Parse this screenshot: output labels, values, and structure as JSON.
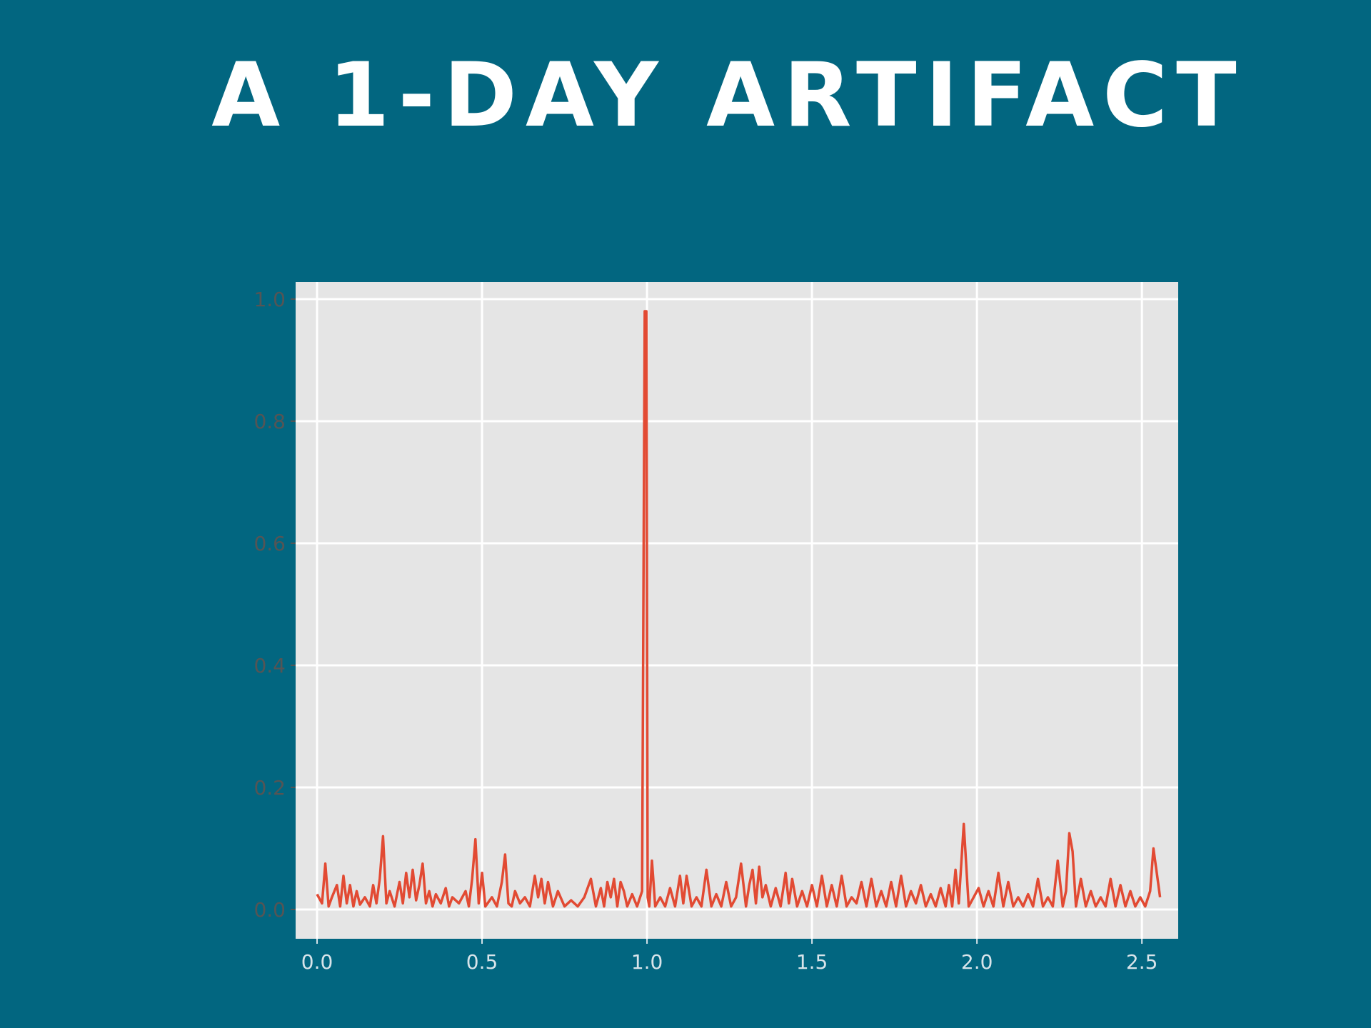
{
  "slide": {
    "title": "A 1-Day Artifact",
    "background_color": "#026680",
    "title_color": "#ffffff"
  },
  "chart_data": {
    "type": "line",
    "title": "",
    "xlabel": "",
    "ylabel": "",
    "xlim": [
      -0.065,
      2.61
    ],
    "ylim": [
      -0.048,
      1.028
    ],
    "grid": true,
    "plot_background": "#e5e5e5",
    "line_color": "#e24a33",
    "x_ticks": [
      0.0,
      0.5,
      1.0,
      1.5,
      2.0,
      2.5
    ],
    "x_tick_labels": [
      "0.0",
      "0.5",
      "1.0",
      "1.5",
      "2.0",
      "2.5"
    ],
    "y_ticks": [
      0.0,
      0.2,
      0.4,
      0.6,
      0.8,
      1.0
    ],
    "y_tick_labels": [
      "0.0",
      "0.2",
      "0.4",
      "0.6",
      "0.8",
      "1.0"
    ],
    "series": [
      {
        "x": [
          0.0,
          0.015,
          0.025,
          0.035,
          0.045,
          0.06,
          0.07,
          0.08,
          0.09,
          0.1,
          0.11,
          0.12,
          0.13,
          0.145,
          0.16,
          0.17,
          0.18,
          0.19,
          0.2,
          0.21,
          0.22,
          0.235,
          0.25,
          0.26,
          0.27,
          0.28,
          0.29,
          0.3,
          0.31,
          0.32,
          0.33,
          0.34,
          0.35,
          0.36,
          0.375,
          0.39,
          0.4,
          0.41,
          0.43,
          0.45,
          0.46,
          0.47,
          0.48,
          0.49,
          0.5,
          0.51,
          0.53,
          0.545,
          0.56,
          0.57,
          0.58,
          0.59,
          0.6,
          0.615,
          0.63,
          0.645,
          0.66,
          0.67,
          0.68,
          0.69,
          0.7,
          0.715,
          0.73,
          0.75,
          0.77,
          0.79,
          0.81,
          0.83,
          0.845,
          0.86,
          0.87,
          0.88,
          0.89,
          0.9,
          0.91,
          0.92,
          0.93,
          0.94,
          0.955,
          0.97,
          0.985,
          0.993,
          0.998,
          1.002,
          1.007,
          1.015,
          1.025,
          1.04,
          1.055,
          1.07,
          1.085,
          1.1,
          1.11,
          1.12,
          1.135,
          1.15,
          1.165,
          1.18,
          1.195,
          1.21,
          1.225,
          1.24,
          1.255,
          1.27,
          1.285,
          1.3,
          1.31,
          1.32,
          1.33,
          1.34,
          1.35,
          1.36,
          1.375,
          1.39,
          1.405,
          1.42,
          1.43,
          1.44,
          1.455,
          1.47,
          1.485,
          1.5,
          1.515,
          1.53,
          1.545,
          1.56,
          1.575,
          1.59,
          1.605,
          1.62,
          1.635,
          1.65,
          1.665,
          1.68,
          1.695,
          1.71,
          1.725,
          1.74,
          1.755,
          1.77,
          1.785,
          1.8,
          1.815,
          1.83,
          1.845,
          1.86,
          1.875,
          1.89,
          1.905,
          1.915,
          1.925,
          1.935,
          1.945,
          1.96,
          1.975,
          1.99,
          2.005,
          2.02,
          2.035,
          2.05,
          2.065,
          2.08,
          2.095,
          2.11,
          2.125,
          2.14,
          2.155,
          2.17,
          2.185,
          2.2,
          2.215,
          2.23,
          2.245,
          2.26,
          2.27,
          2.28,
          2.29,
          2.3,
          2.315,
          2.33,
          2.345,
          2.36,
          2.375,
          2.39,
          2.405,
          2.42,
          2.435,
          2.45,
          2.465,
          2.48,
          2.495,
          2.51,
          2.525,
          2.535,
          2.545,
          2.555
        ],
        "y": [
          0.025,
          0.01,
          0.075,
          0.005,
          0.02,
          0.04,
          0.005,
          0.055,
          0.01,
          0.04,
          0.005,
          0.03,
          0.008,
          0.02,
          0.005,
          0.04,
          0.01,
          0.05,
          0.12,
          0.01,
          0.03,
          0.005,
          0.045,
          0.01,
          0.06,
          0.02,
          0.065,
          0.015,
          0.04,
          0.075,
          0.01,
          0.03,
          0.005,
          0.025,
          0.01,
          0.035,
          0.005,
          0.02,
          0.01,
          0.03,
          0.005,
          0.05,
          0.115,
          0.01,
          0.06,
          0.005,
          0.02,
          0.005,
          0.045,
          0.09,
          0.01,
          0.005,
          0.03,
          0.01,
          0.02,
          0.005,
          0.055,
          0.02,
          0.05,
          0.01,
          0.045,
          0.005,
          0.03,
          0.005,
          0.015,
          0.005,
          0.02,
          0.05,
          0.005,
          0.035,
          0.005,
          0.045,
          0.02,
          0.05,
          0.005,
          0.045,
          0.03,
          0.005,
          0.025,
          0.005,
          0.03,
          0.98,
          0.98,
          0.02,
          0.005,
          0.08,
          0.005,
          0.02,
          0.005,
          0.035,
          0.005,
          0.055,
          0.01,
          0.055,
          0.005,
          0.02,
          0.005,
          0.065,
          0.005,
          0.025,
          0.005,
          0.045,
          0.005,
          0.02,
          0.075,
          0.005,
          0.04,
          0.065,
          0.01,
          0.07,
          0.02,
          0.04,
          0.005,
          0.035,
          0.005,
          0.06,
          0.01,
          0.05,
          0.005,
          0.03,
          0.005,
          0.04,
          0.005,
          0.055,
          0.005,
          0.04,
          0.005,
          0.055,
          0.005,
          0.02,
          0.01,
          0.045,
          0.005,
          0.05,
          0.005,
          0.03,
          0.005,
          0.045,
          0.005,
          0.055,
          0.005,
          0.03,
          0.01,
          0.04,
          0.005,
          0.025,
          0.005,
          0.035,
          0.005,
          0.04,
          0.005,
          0.065,
          0.01,
          0.14,
          0.005,
          0.02,
          0.035,
          0.005,
          0.03,
          0.005,
          0.06,
          0.005,
          0.045,
          0.005,
          0.02,
          0.005,
          0.025,
          0.005,
          0.05,
          0.005,
          0.02,
          0.005,
          0.08,
          0.005,
          0.03,
          0.125,
          0.095,
          0.005,
          0.05,
          0.005,
          0.03,
          0.005,
          0.02,
          0.005,
          0.05,
          0.005,
          0.04,
          0.005,
          0.03,
          0.005,
          0.02,
          0.005,
          0.03,
          0.1,
          0.06,
          0.02
        ]
      }
    ]
  }
}
